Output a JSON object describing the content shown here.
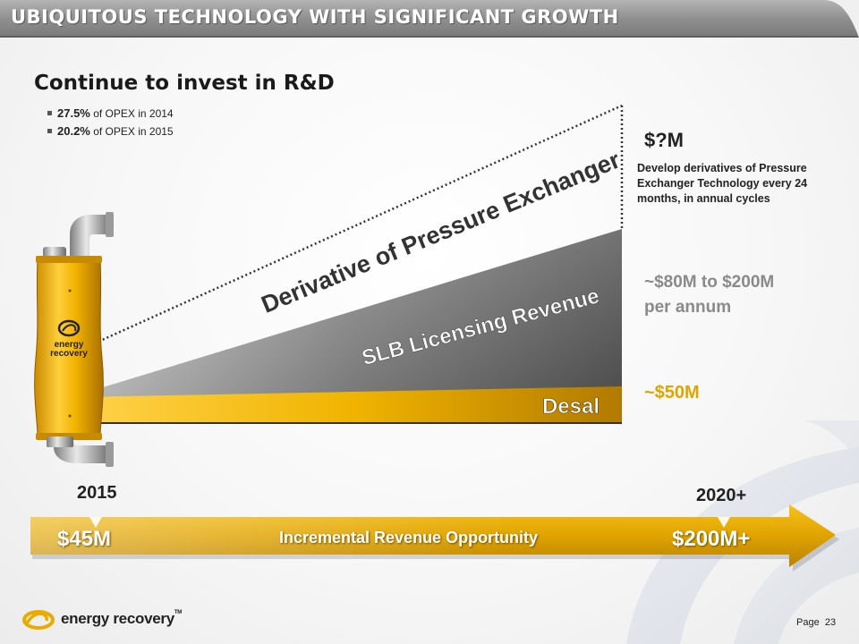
{
  "slide": {
    "title": "UBIQUITOUS TECHNOLOGY WITH SIGNIFICANT GROWTH",
    "heading": "Continue to invest in R&D",
    "bullets": [
      {
        "value": "27.5%",
        "text": "of OPEX in 2014"
      },
      {
        "value": "20.2%",
        "text": "of OPEX in 2015"
      }
    ]
  },
  "chart": {
    "layers": {
      "derivative": "Derivative of Pressure Exchanger",
      "slb": "SLB Licensing Revenue",
      "desal": "Desal"
    },
    "annotations": {
      "derivative_value": "$?M",
      "derivative_desc": "Develop derivatives of Pressure Exchanger Technology every 24 months, in annual cycles",
      "slb_value_line1": "~$80M to $200M",
      "slb_value_line2": "per annum",
      "desal_value": "~$50M"
    },
    "device_logo": {
      "line1": "energy",
      "line2": "recovery"
    }
  },
  "timeline": {
    "start_year": "2015",
    "end_year": "2020+",
    "start_value": "$45M",
    "end_value": "$200M+",
    "label": "Incremental Revenue Opportunity"
  },
  "footer": {
    "brand": "energy recovery",
    "tm": "TM",
    "page_label": "Page",
    "page_number": "23"
  },
  "colors": {
    "gold": "#e8ac00",
    "gray": "#6e6e6e",
    "title_bar": "#9a9a9a"
  }
}
